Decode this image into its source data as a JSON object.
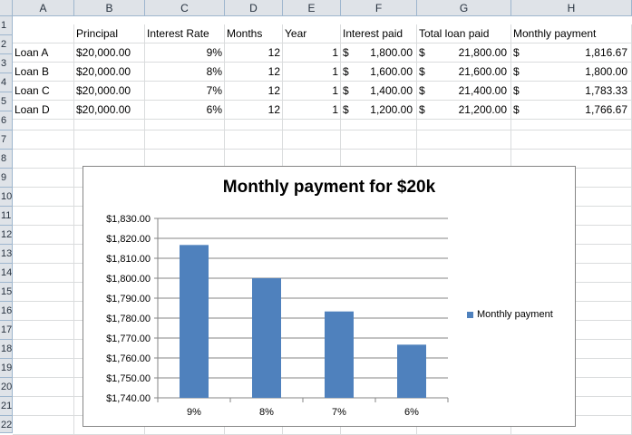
{
  "columns": [
    "A",
    "B",
    "C",
    "D",
    "E",
    "F",
    "G",
    "H"
  ],
  "rows": [
    "1",
    "2",
    "3",
    "4",
    "5",
    "6",
    "7",
    "8",
    "9",
    "10",
    "11",
    "12",
    "13",
    "14",
    "15",
    "16",
    "17",
    "18",
    "19",
    "20",
    "21",
    "22"
  ],
  "headers": {
    "b": "Principal",
    "c": "Interest Rate",
    "d": "Months",
    "e": "Year",
    "f": "Interest paid",
    "g": "Total loan paid",
    "h": "Monthly payment"
  },
  "currency_symbol": "$",
  "loans": [
    {
      "name": "Loan A",
      "principal": "$20,000.00",
      "rate": "9%",
      "months": "12",
      "year": "1",
      "interest": "1,800.00",
      "total": "21,800.00",
      "monthly": "1,816.67"
    },
    {
      "name": "Loan B",
      "principal": "$20,000.00",
      "rate": "8%",
      "months": "12",
      "year": "1",
      "interest": "1,600.00",
      "total": "21,600.00",
      "monthly": "1,800.00"
    },
    {
      "name": "Loan C",
      "principal": "$20,000.00",
      "rate": "7%",
      "months": "12",
      "year": "1",
      "interest": "1,400.00",
      "total": "21,400.00",
      "monthly": "1,783.33"
    },
    {
      "name": "Loan D",
      "principal": "$20,000.00",
      "rate": "6%",
      "months": "12",
      "year": "1",
      "interest": "1,200.00",
      "total": "21,200.00",
      "monthly": "1,766.67"
    }
  ],
  "chart_data": {
    "type": "bar",
    "title": "Monthly payment for $20k",
    "categories": [
      "9%",
      "8%",
      "7%",
      "6%"
    ],
    "series": [
      {
        "name": "Monthly payment",
        "values": [
          1816.67,
          1800.0,
          1783.33,
          1766.67
        ]
      }
    ],
    "ylim": [
      1740,
      1830
    ],
    "yticks": [
      "$1,740.00",
      "$1,750.00",
      "$1,760.00",
      "$1,770.00",
      "$1,780.00",
      "$1,790.00",
      "$1,800.00",
      "$1,810.00",
      "$1,820.00",
      "$1,830.00"
    ],
    "grid": true,
    "legend": "right",
    "bar_color": "#4f81bd"
  }
}
